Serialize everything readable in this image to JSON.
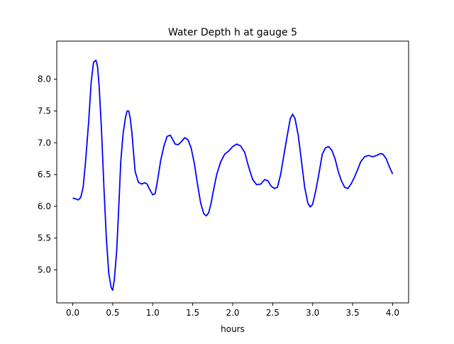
{
  "chart_data": {
    "type": "line",
    "title": "Water Depth h at gauge 5",
    "xlabel": "hours",
    "ylabel": "",
    "xlim": [
      -0.2,
      4.2
    ],
    "ylim": [
      4.48,
      8.6
    ],
    "grid": false,
    "x_ticks": [
      0.0,
      0.5,
      1.0,
      1.5,
      2.0,
      2.5,
      3.0,
      3.5,
      4.0
    ],
    "x_tick_labels": [
      "0.0",
      "0.5",
      "1.0",
      "1.5",
      "2.0",
      "2.5",
      "3.0",
      "3.5",
      "4.0"
    ],
    "y_ticks": [
      5.0,
      5.5,
      6.0,
      6.5,
      7.0,
      7.5,
      8.0
    ],
    "y_tick_labels": [
      "5.0",
      "5.5",
      "6.0",
      "6.5",
      "7.0",
      "7.5",
      "8.0"
    ],
    "series": [
      {
        "color": "#0000ff",
        "x": [
          0.0,
          0.03,
          0.07,
          0.1,
          0.13,
          0.16,
          0.2,
          0.23,
          0.26,
          0.29,
          0.31,
          0.33,
          0.36,
          0.39,
          0.42,
          0.45,
          0.48,
          0.5,
          0.52,
          0.55,
          0.58,
          0.6,
          0.63,
          0.66,
          0.68,
          0.7,
          0.72,
          0.74,
          0.76,
          0.78,
          0.82,
          0.86,
          0.9,
          0.93,
          0.96,
          1.0,
          1.03,
          1.06,
          1.1,
          1.14,
          1.18,
          1.22,
          1.25,
          1.28,
          1.32,
          1.36,
          1.4,
          1.44,
          1.48,
          1.52,
          1.56,
          1.6,
          1.64,
          1.67,
          1.7,
          1.73,
          1.76,
          1.8,
          1.85,
          1.9,
          1.95,
          2.0,
          2.05,
          2.1,
          2.15,
          2.2,
          2.25,
          2.3,
          2.35,
          2.4,
          2.44,
          2.48,
          2.52,
          2.56,
          2.6,
          2.64,
          2.68,
          2.72,
          2.75,
          2.78,
          2.82,
          2.86,
          2.9,
          2.94,
          2.97,
          3.0,
          3.04,
          3.08,
          3.12,
          3.16,
          3.2,
          3.24,
          3.28,
          3.32,
          3.36,
          3.4,
          3.44,
          3.48,
          3.52,
          3.56,
          3.6,
          3.65,
          3.7,
          3.75,
          3.8,
          3.85,
          3.88,
          3.92,
          3.96,
          4.0
        ],
        "y": [
          6.13,
          6.12,
          6.1,
          6.14,
          6.3,
          6.7,
          7.35,
          7.95,
          8.27,
          8.3,
          8.2,
          7.9,
          7.2,
          6.3,
          5.5,
          4.95,
          4.72,
          4.68,
          4.85,
          5.3,
          6.1,
          6.7,
          7.15,
          7.4,
          7.5,
          7.5,
          7.38,
          7.15,
          6.85,
          6.55,
          6.38,
          6.35,
          6.37,
          6.35,
          6.27,
          6.18,
          6.2,
          6.4,
          6.72,
          6.95,
          7.1,
          7.12,
          7.05,
          6.98,
          6.97,
          7.02,
          7.08,
          7.05,
          6.92,
          6.68,
          6.35,
          6.05,
          5.88,
          5.85,
          5.9,
          6.05,
          6.25,
          6.5,
          6.7,
          6.82,
          6.87,
          6.94,
          6.98,
          6.95,
          6.85,
          6.62,
          6.42,
          6.34,
          6.35,
          6.42,
          6.4,
          6.32,
          6.28,
          6.3,
          6.5,
          6.8,
          7.1,
          7.38,
          7.45,
          7.38,
          7.12,
          6.72,
          6.3,
          6.05,
          5.99,
          6.03,
          6.25,
          6.52,
          6.82,
          6.92,
          6.94,
          6.88,
          6.75,
          6.55,
          6.4,
          6.3,
          6.28,
          6.35,
          6.45,
          6.57,
          6.7,
          6.78,
          6.8,
          6.78,
          6.8,
          6.83,
          6.82,
          6.75,
          6.62,
          6.51
        ]
      }
    ]
  }
}
